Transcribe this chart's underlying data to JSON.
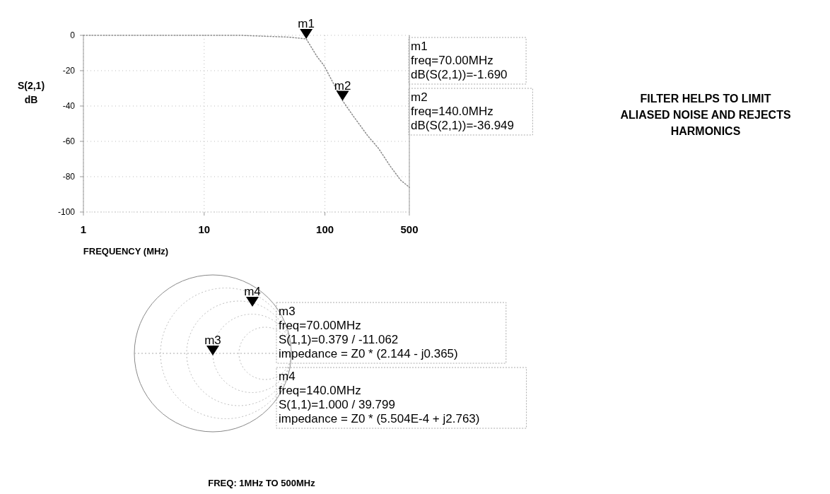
{
  "chart_data": [
    {
      "type": "line",
      "xlabel": "FREQUENCY (MHz)",
      "ylabel": "S(2,1) dB",
      "log": "x",
      "xlim": [
        1,
        500
      ],
      "xticks": [
        1,
        10,
        100,
        500
      ],
      "ylim": [
        -100,
        0
      ],
      "yticks": [
        -100,
        -80,
        -60,
        -40,
        -20,
        0
      ],
      "grid": true,
      "line_style": "dotted",
      "series": [
        {
          "color": "#8c8c8c",
          "x": [
            1,
            5,
            20,
            50,
            70,
            86,
            98,
            140,
            173,
            227,
            278,
            347,
            424,
            500
          ],
          "values": [
            0,
            0,
            0,
            -1,
            -2,
            -12,
            -17,
            -37,
            -46,
            -57,
            -64,
            -74,
            -82,
            -86
          ]
        }
      ],
      "annotations": [
        {
          "text": "m1",
          "x": 70,
          "y": -2
        },
        {
          "text": "m2",
          "x": 140,
          "y": -37
        },
        "m1\nfreq=70.00MHz\ndB(S(2,1))=-1.690",
        "m2\nfreq=140.0MHz\ndB(S(2,1))=-36.949"
      ]
    },
    {
      "type": "other",
      "annotations": [
        "m3",
        "m4",
        "m3\nfreq=70.00MHz\nS(1,1)=0.379 / -11.062\nimpedance = Z0 * (2.144 - j0.365)",
        "m4\nfreq=140.0MHz\nS(1,1)=1.000 / 39.799\nimpedance = Z0 * (5.504E-4 + j2.763)",
        "FREQ: 1MHz TO 500MHz"
      ]
    },
    {
      "type": "other",
      "title": "FILTER HELPS TO LIMIT ALIASED NOISE AND REJECTS HARMONICS"
    }
  ]
}
